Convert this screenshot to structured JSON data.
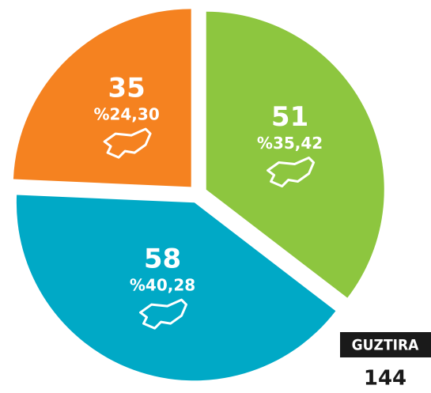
{
  "chart_data": {
    "type": "pie",
    "values": [
      51,
      58,
      35
    ],
    "value_labels": [
      "%35,42",
      "%40,28",
      "%24,30"
    ],
    "colors": [
      "#8dc63f",
      "#00a9c6",
      "#f58220"
    ],
    "total_label": "GUZTIRA",
    "total": 144
  }
}
